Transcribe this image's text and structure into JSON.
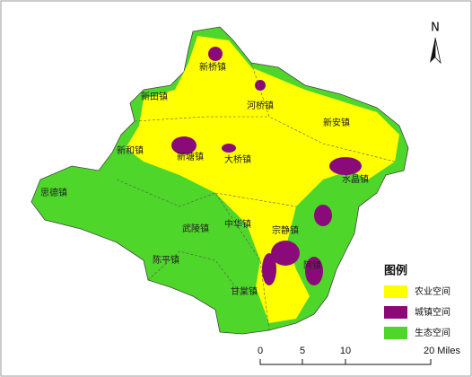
{
  "north": "N",
  "towns": [
    "新桥镇",
    "新田镇",
    "河桥镇",
    "新安镇",
    "新和镇",
    "新塘镇",
    "大桥镇",
    "水晶镇",
    "思德镇",
    "武陵镇",
    "中华镇",
    "宗静镇",
    "陈平镇",
    "阿镇",
    "甘棠镇"
  ],
  "legend": {
    "title": "图例",
    "items": [
      {
        "label": "农业空间",
        "color": "#ffff00"
      },
      {
        "label": "城镇空间",
        "color": "#8b0a7a"
      },
      {
        "label": "生态空间",
        "color": "#4fd62a"
      }
    ]
  },
  "scale_bar": {
    "labels": [
      "0",
      "5",
      "10",
      "20 Miles"
    ]
  }
}
